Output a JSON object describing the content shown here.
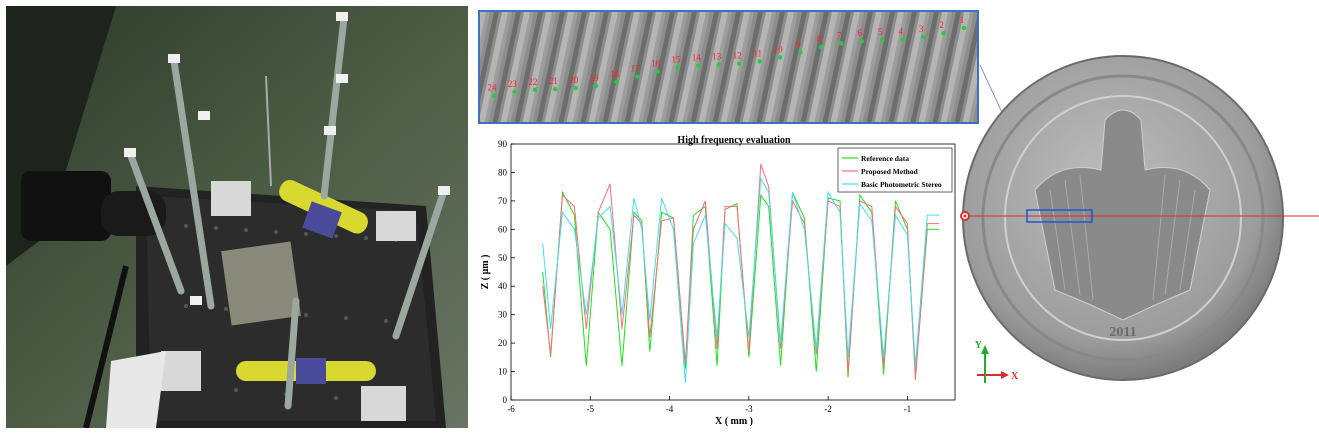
{
  "figure": {
    "photo": {
      "description_icon": "photometric-stereo-rig-photo"
    },
    "surface_crop": {
      "point_labels": [
        "1",
        "2",
        "3",
        "4",
        "5",
        "6",
        "7",
        "8",
        "9",
        "10",
        "11",
        "12",
        "13",
        "14",
        "15",
        "16",
        "17",
        "18",
        "19",
        "20",
        "21",
        "22",
        "23",
        "24"
      ],
      "label_color": "#ff2020",
      "marker_color": "#22cc44",
      "border_color": "#3f6fc0"
    },
    "coin": {
      "axis_y_label": "Y",
      "axis_x_label": "X",
      "year_text": "2011",
      "line_color": "#d03030",
      "roi_color": "#2255cc"
    }
  },
  "chart_data": {
    "type": "line",
    "title": "High frequency evaluation",
    "xlabel": "X ( mm )",
    "ylabel": "Z ( μm )",
    "xlim": [
      -6,
      -0.4
    ],
    "ylim": [
      0,
      90
    ],
    "xticks": [
      -6,
      -5,
      -4,
      -3,
      -2,
      -1
    ],
    "yticks": [
      0,
      10,
      20,
      30,
      40,
      50,
      60,
      70,
      80,
      90
    ],
    "legend_position": "top-right",
    "series": [
      {
        "name": "Reference data",
        "color": "#22dd22",
        "x": [
          -5.6,
          -5.5,
          -5.35,
          -5.2,
          -5.05,
          -4.9,
          -4.75,
          -4.6,
          -4.45,
          -4.35,
          -4.25,
          -4.1,
          -3.95,
          -3.8,
          -3.7,
          -3.55,
          -3.4,
          -3.3,
          -3.15,
          -3.0,
          -2.85,
          -2.75,
          -2.6,
          -2.45,
          -2.3,
          -2.15,
          -2.0,
          -1.85,
          -1.75,
          -1.6,
          -1.45,
          -1.3,
          -1.15,
          -1.0,
          -0.9,
          -0.75,
          -0.6
        ],
        "y": [
          45,
          15,
          73,
          65,
          12,
          66,
          60,
          12,
          66,
          63,
          17,
          66,
          64,
          11,
          65,
          68,
          12,
          67,
          69,
          15,
          72,
          68,
          12,
          73,
          64,
          10,
          71,
          70,
          8,
          72,
          66,
          9,
          70,
          60,
          8,
          60,
          60
        ]
      },
      {
        "name": "Proposed Method",
        "color": "#ff6b7a",
        "x": [
          -5.6,
          -5.5,
          -5.35,
          -5.2,
          -5.05,
          -4.9,
          -4.75,
          -4.6,
          -4.45,
          -4.35,
          -4.25,
          -4.1,
          -3.95,
          -3.8,
          -3.7,
          -3.55,
          -3.4,
          -3.3,
          -3.15,
          -3.0,
          -2.85,
          -2.75,
          -2.6,
          -2.45,
          -2.3,
          -2.15,
          -2.0,
          -1.85,
          -1.75,
          -1.6,
          -1.45,
          -1.3,
          -1.15,
          -1.0,
          -0.9,
          -0.75,
          -0.6
        ],
        "y": [
          40,
          16,
          72,
          68,
          25,
          66,
          76,
          25,
          65,
          62,
          22,
          63,
          64,
          13,
          60,
          70,
          18,
          68,
          68,
          17,
          83,
          75,
          18,
          70,
          62,
          16,
          70,
          68,
          10,
          70,
          68,
          12,
          68,
          62,
          7,
          62,
          62
        ]
      },
      {
        "name": "Basic Photometric Stereo",
        "color": "#44ddee",
        "x": [
          -5.6,
          -5.5,
          -5.35,
          -5.2,
          -5.05,
          -4.9,
          -4.75,
          -4.6,
          -4.45,
          -4.35,
          -4.25,
          -4.1,
          -3.95,
          -3.8,
          -3.7,
          -3.55,
          -3.4,
          -3.3,
          -3.15,
          -3.0,
          -2.85,
          -2.75,
          -2.6,
          -2.45,
          -2.3,
          -2.15,
          -2.0,
          -1.85,
          -1.75,
          -1.6,
          -1.45,
          -1.3,
          -1.15,
          -1.0,
          -0.9,
          -0.75,
          -0.6
        ],
        "y": [
          55,
          25,
          66,
          60,
          30,
          64,
          68,
          30,
          71,
          60,
          28,
          71,
          60,
          6,
          55,
          65,
          22,
          62,
          57,
          22,
          78,
          73,
          20,
          73,
          60,
          18,
          73,
          66,
          15,
          69,
          63,
          15,
          65,
          58,
          12,
          65,
          65
        ]
      }
    ]
  }
}
